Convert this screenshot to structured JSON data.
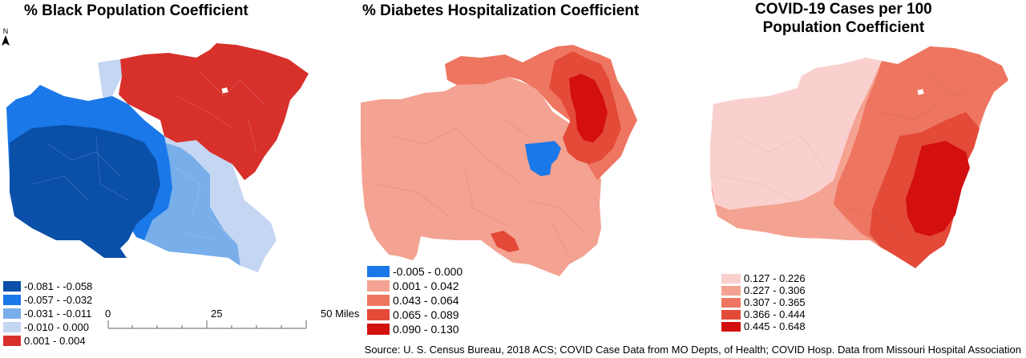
{
  "north_label": "N",
  "panels": [
    {
      "title": "% Black Population Coefficient",
      "legend": [
        {
          "label": "-0.081 - -0.058",
          "color": "#0a4fa8"
        },
        {
          "label": "-0.057 - -0.032",
          "color": "#1a78e8"
        },
        {
          "label": "-0.031 - -0.011",
          "color": "#78aeea"
        },
        {
          "label": "-0.010 - 0.000",
          "color": "#c4d6f2"
        },
        {
          "label": "0.001 - 0.004",
          "color": "#d8302b"
        }
      ]
    },
    {
      "title": "% Diabetes Hospitalization Coefficient",
      "legend": [
        {
          "label": "-0.005 - 0.000",
          "color": "#1a78e8"
        },
        {
          "label": "0.001 - 0.042",
          "color": "#f4a291"
        },
        {
          "label": "0.043 - 0.064",
          "color": "#ee7560"
        },
        {
          "label": "0.065 - 0.089",
          "color": "#e34a38"
        },
        {
          "label": "0.090 - 0.130",
          "color": "#d40f0f"
        }
      ]
    },
    {
      "title_line1": "COVID-19 Cases per 100",
      "title_line2": "Population Coefficient",
      "legend": [
        {
          "label": "0.127 - 0.226",
          "color": "#fad0ce"
        },
        {
          "label": "0.227 - 0.306",
          "color": "#f4a291"
        },
        {
          "label": "0.307 - 0.365",
          "color": "#ee7560"
        },
        {
          "label": "0.366 - 0.444",
          "color": "#e34a38"
        },
        {
          "label": "0.445 - 0.648",
          "color": "#d40f0f"
        }
      ]
    }
  ],
  "scale_bar": {
    "start": "0",
    "mid": "25",
    "end": "50 Miles"
  },
  "source": "Source: U. S. Census Bureau, 2018 ACS; COVID Case Data from MO Depts, of Health; COVID Hosp. Data from Missouri Hospital Association"
}
